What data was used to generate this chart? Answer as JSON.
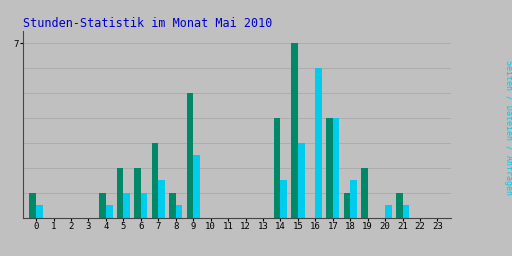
{
  "title": "Stunden-Statistik im Monat Mai 2010",
  "title_color": "#0000cc",
  "title_fontsize": 8.5,
  "ylabel_right": "Seiten / Dateien / Anfragen",
  "background_color": "#c0c0c0",
  "plot_bg_color": "#c0c0c0",
  "hours": [
    0,
    1,
    2,
    3,
    4,
    5,
    6,
    7,
    8,
    9,
    10,
    11,
    12,
    13,
    14,
    15,
    16,
    17,
    18,
    19,
    20,
    21,
    22,
    23
  ],
  "green_values": [
    1,
    0,
    0,
    0,
    1,
    2,
    2,
    3,
    1,
    5,
    0,
    0,
    0,
    0,
    4,
    7,
    0,
    4,
    1,
    2,
    0,
    1,
    0,
    0
  ],
  "cyan_values": [
    0.5,
    0,
    0,
    0,
    0.5,
    1,
    1,
    1.5,
    0.5,
    2.5,
    0,
    0,
    0,
    0,
    1.5,
    3,
    6,
    4,
    1.5,
    0,
    0.5,
    0.5,
    0,
    0
  ],
  "green_color": "#008868",
  "cyan_color": "#00ccee",
  "bar_width": 0.38,
  "ylim": [
    0,
    7.5
  ],
  "ytick_label": "7",
  "ytick_val": 7,
  "grid_color": "#aaaaaa",
  "border_color": "#444444",
  "tick_fontsize": 6.5,
  "right_label_color_pages": "#008868",
  "right_label_color_requests": "#00ccee"
}
